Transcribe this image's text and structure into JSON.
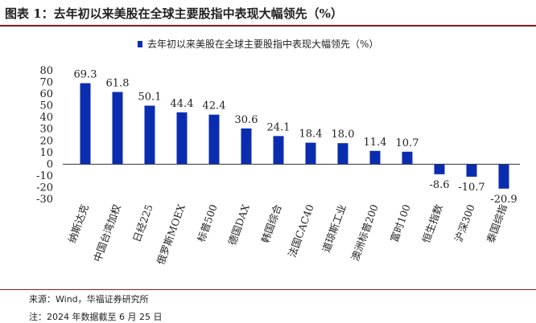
{
  "header": {
    "figure_title": "图表 1：去年初以来美股在全球主要股指中表现大幅领先（%）"
  },
  "footer": {
    "source": "来源：Wind，华福证券研究所",
    "note": "注：2024 年数据截至 6 月 25 日"
  },
  "chart_data": {
    "type": "bar",
    "legend": {
      "label": "去年初以来美股在全球主要股指中表现大幅领先（%）",
      "position": "top"
    },
    "categories": [
      "纳斯达克",
      "中国台湾加权",
      "日经225",
      "俄罗斯MOEX",
      "标普500",
      "德国DAX",
      "韩国综合",
      "法国CAC40",
      "道琼斯工业",
      "澳洲标普200",
      "富时100",
      "恒生指数",
      "沪深300",
      "泰国综指"
    ],
    "series": [
      {
        "name": "去年初以来美股在全球主要股指中表现大幅领先（%）",
        "values": [
          69.3,
          61.8,
          50.1,
          44.4,
          42.4,
          30.6,
          24.1,
          18.4,
          18.0,
          11.4,
          10.7,
          -8.6,
          -10.7,
          -20.9
        ],
        "labels": [
          "69.3",
          "61.8",
          "50.1",
          "44.4",
          "42.4",
          "30.6",
          "24.1",
          "18.4",
          "18.0",
          "11.4",
          "10.7",
          "-8.6",
          "-10.7",
          "-20.9"
        ]
      }
    ],
    "yticks": [
      "80",
      "70",
      "60",
      "50",
      "40",
      "30",
      "20",
      "10",
      "0",
      "-10",
      "-20",
      "-30"
    ],
    "ylim": [
      -30,
      80
    ],
    "grid": false,
    "color": "#0A2DB0"
  }
}
